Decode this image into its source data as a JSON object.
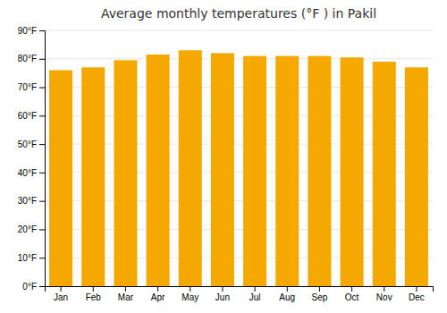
{
  "chart_data": {
    "type": "bar",
    "title": "Average monthly temperatures (°F ) in Pakil",
    "categories": [
      "Jan",
      "Feb",
      "Mar",
      "Apr",
      "May",
      "Jun",
      "Jul",
      "Aug",
      "Sep",
      "Oct",
      "Nov",
      "Dec"
    ],
    "values": [
      76,
      77,
      79.5,
      81.5,
      83,
      82,
      81,
      81,
      81,
      80.5,
      79,
      77
    ],
    "color": "#F5A800",
    "ylim": [
      0,
      90
    ],
    "yticks": [
      {
        "value": 0,
        "label": "0°F"
      },
      {
        "value": 10,
        "label": "10°F"
      },
      {
        "value": 20,
        "label": "20°F"
      },
      {
        "value": 30,
        "label": "30°F"
      },
      {
        "value": 40,
        "label": "40°F"
      },
      {
        "value": 50,
        "label": "50°F"
      },
      {
        "value": 60,
        "label": "60°F"
      },
      {
        "value": 70,
        "label": "70°F"
      },
      {
        "value": 80,
        "label": "80°F"
      },
      {
        "value": 90,
        "label": "90°F"
      }
    ],
    "grid": true
  }
}
